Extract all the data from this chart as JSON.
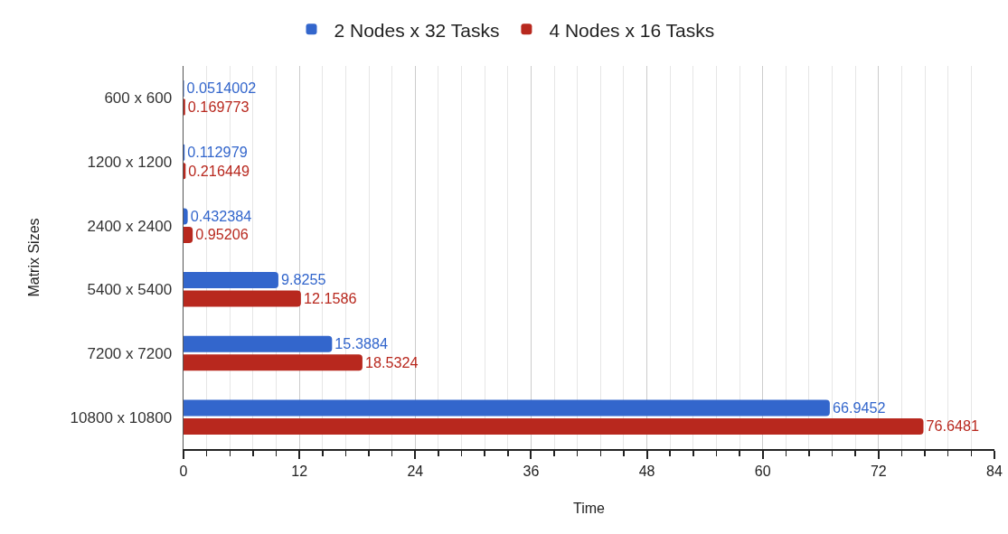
{
  "chart_data": {
    "type": "bar",
    "orientation": "horizontal",
    "xlabel": "Time",
    "ylabel": "Matrix Sizes",
    "categories": [
      "600 x 600",
      "1200 x 1200",
      "2400 x 2400",
      "5400 x 5400",
      "7200 x 7200",
      "10800 x 10800"
    ],
    "series": [
      {
        "name": "2 Nodes x 32 Tasks",
        "color": "#3366cc",
        "values": [
          0.0514002,
          0.112979,
          0.432384,
          9.8255,
          15.3884,
          66.9452
        ]
      },
      {
        "name": "4 Nodes x 16 Tasks",
        "color": "#b8281e",
        "values": [
          0.169773,
          0.216449,
          0.95206,
          12.1586,
          18.5324,
          76.6481
        ]
      }
    ],
    "xlim": [
      0,
      84
    ],
    "xticks": [
      0,
      {
        "value": 2.4,
        "label": null
      },
      {
        "value": 4.8,
        "label": null
      },
      {
        "value": 7.2,
        "label": null
      },
      {
        "value": 9.6,
        "label": null
      },
      12,
      {
        "value": 14.4,
        "label": null
      },
      {
        "value": 16.8,
        "label": null
      },
      {
        "value": 19.2,
        "label": null
      },
      {
        "value": 21.6,
        "label": null
      },
      24,
      {
        "value": 26.4,
        "label": null
      },
      {
        "value": 28.8,
        "label": null
      },
      {
        "value": 31.2,
        "label": null
      },
      {
        "value": 33.6,
        "label": null
      },
      36,
      {
        "value": 38.4,
        "label": null
      },
      {
        "value": 40.8,
        "label": null
      },
      {
        "value": 43.2,
        "label": null
      },
      {
        "value": 45.6,
        "label": null
      },
      48,
      {
        "value": 50.4,
        "label": null
      },
      {
        "value": 52.8,
        "label": null
      },
      {
        "value": 55.2,
        "label": null
      },
      {
        "value": 57.6,
        "label": null
      },
      60,
      {
        "value": 62.4,
        "label": null
      },
      {
        "value": 64.8,
        "label": null
      },
      {
        "value": 67.2,
        "label": null
      },
      {
        "value": 69.6,
        "label": null
      },
      72,
      {
        "value": 74.4,
        "label": null
      },
      {
        "value": 76.8,
        "label": null
      },
      {
        "value": 79.2,
        "label": null
      },
      {
        "value": 81.6,
        "label": null
      },
      84
    ],
    "grid": "x",
    "legend": "top",
    "data_labels": true
  }
}
